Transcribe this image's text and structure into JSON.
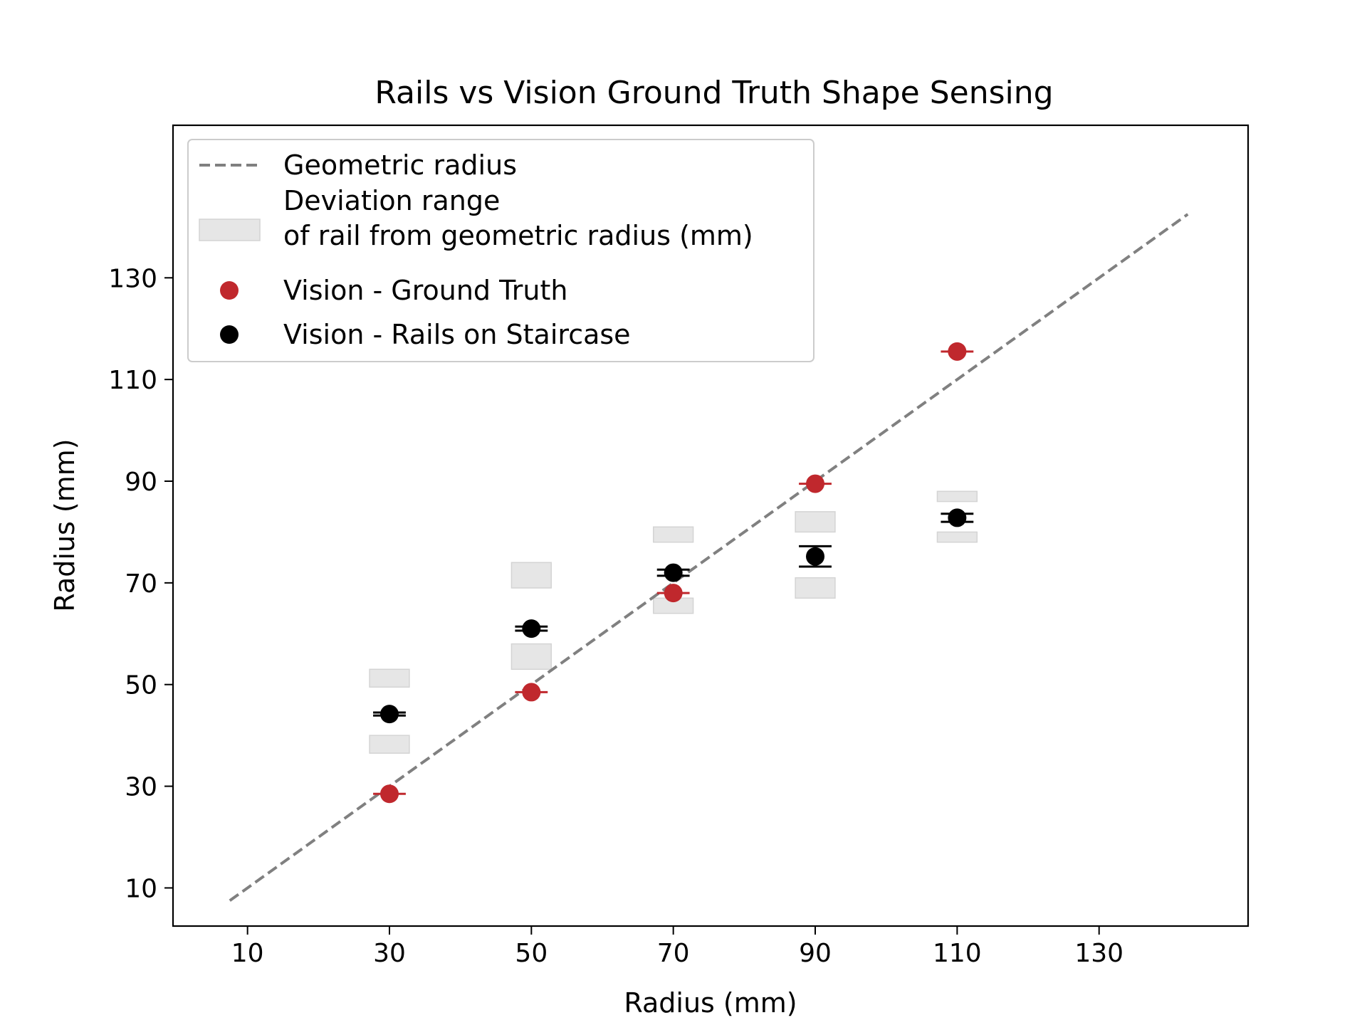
{
  "chart_data": {
    "type": "scatter",
    "title": "Rails vs Vision Ground Truth Shape Sensing",
    "xlabel": "Radius (mm)",
    "ylabel": "Radius (mm)",
    "xlim": [
      -0.5,
      151
    ],
    "ylim": [
      2.5,
      160
    ],
    "x_ticks": [
      10,
      30,
      50,
      70,
      90,
      110,
      130
    ],
    "y_ticks": [
      10,
      30,
      50,
      70,
      90,
      110,
      130
    ],
    "grid": false,
    "legend_position": "upper-left",
    "geometric_line": {
      "name": "Geometric radius",
      "x": [
        7.5,
        142.5
      ],
      "y": [
        7.5,
        142.5
      ],
      "color": "#808080"
    },
    "deviation_ranges": {
      "name": "Deviation range\nof rail from geometric radius (mm)",
      "color": "#e6e6e6",
      "boxes": [
        {
          "x": 30,
          "low": [
            36.5,
            40
          ],
          "high": [
            49.5,
            53
          ]
        },
        {
          "x": 50,
          "low": [
            53,
            58
          ],
          "high": [
            69,
            74
          ]
        },
        {
          "x": 70,
          "low": [
            64,
            67
          ],
          "high": [
            78,
            81
          ]
        },
        {
          "x": 90,
          "low": [
            67,
            71
          ],
          "high": [
            80,
            84
          ]
        },
        {
          "x": 110,
          "low": [
            78,
            80
          ],
          "high": [
            86,
            88
          ]
        }
      ]
    },
    "series": [
      {
        "name": "Vision - Ground Truth",
        "color": "#c0282d",
        "x": [
          30,
          50,
          70,
          90,
          110
        ],
        "y": [
          28.5,
          48.5,
          68,
          89.5,
          115.5
        ],
        "err": [
          0,
          0,
          0,
          0,
          0
        ]
      },
      {
        "name": "Vision - Rails on Staircase",
        "color": "#000000",
        "x": [
          30,
          50,
          70,
          90,
          110
        ],
        "y": [
          44.2,
          61,
          72,
          75.2,
          82.8
        ],
        "err": [
          0.3,
          0.4,
          0.6,
          2.0,
          0.8
        ]
      }
    ]
  }
}
